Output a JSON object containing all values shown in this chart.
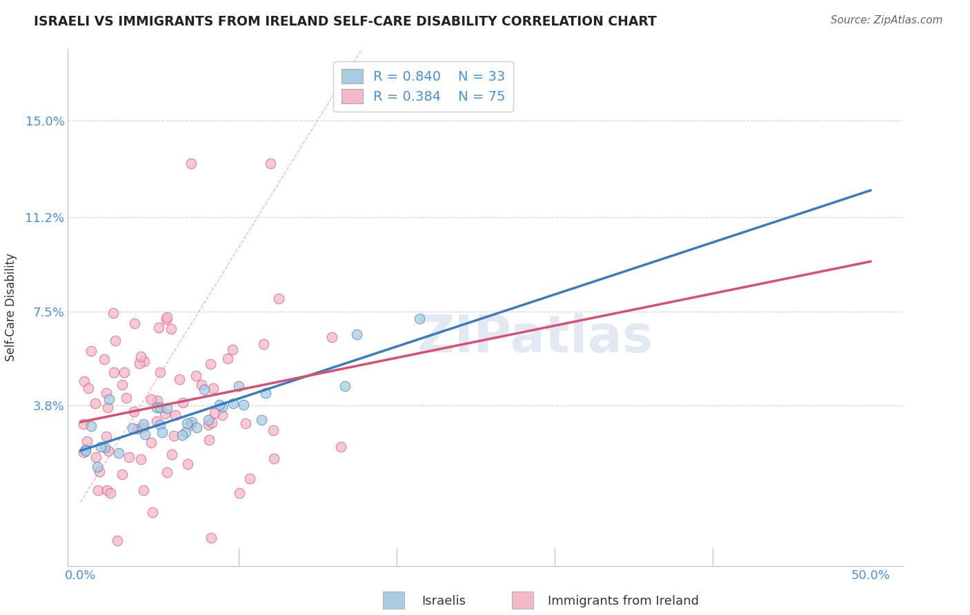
{
  "title": "ISRAELI VS IMMIGRANTS FROM IRELAND SELF-CARE DISABILITY CORRELATION CHART",
  "source": "Source: ZipAtlas.com",
  "ylabel": "Self-Care Disability",
  "watermark": "ZIPatlas",
  "legend_r_blue": "R = 0.840",
  "legend_n_blue": "N = 33",
  "legend_r_pink": "R = 0.384",
  "legend_n_pink": "N = 75",
  "color_blue": "#a8cce0",
  "color_pink": "#f4b8c8",
  "color_blue_line": "#3a7bbf",
  "color_pink_line": "#d94f6e",
  "color_diag": "#f0b0b8",
  "bg_color": "#ffffff",
  "grid_color": "#cccccc",
  "title_color": "#222222",
  "axis_label_color": "#333333",
  "tick_label_color": "#4a90d9",
  "source_color": "#666666"
}
